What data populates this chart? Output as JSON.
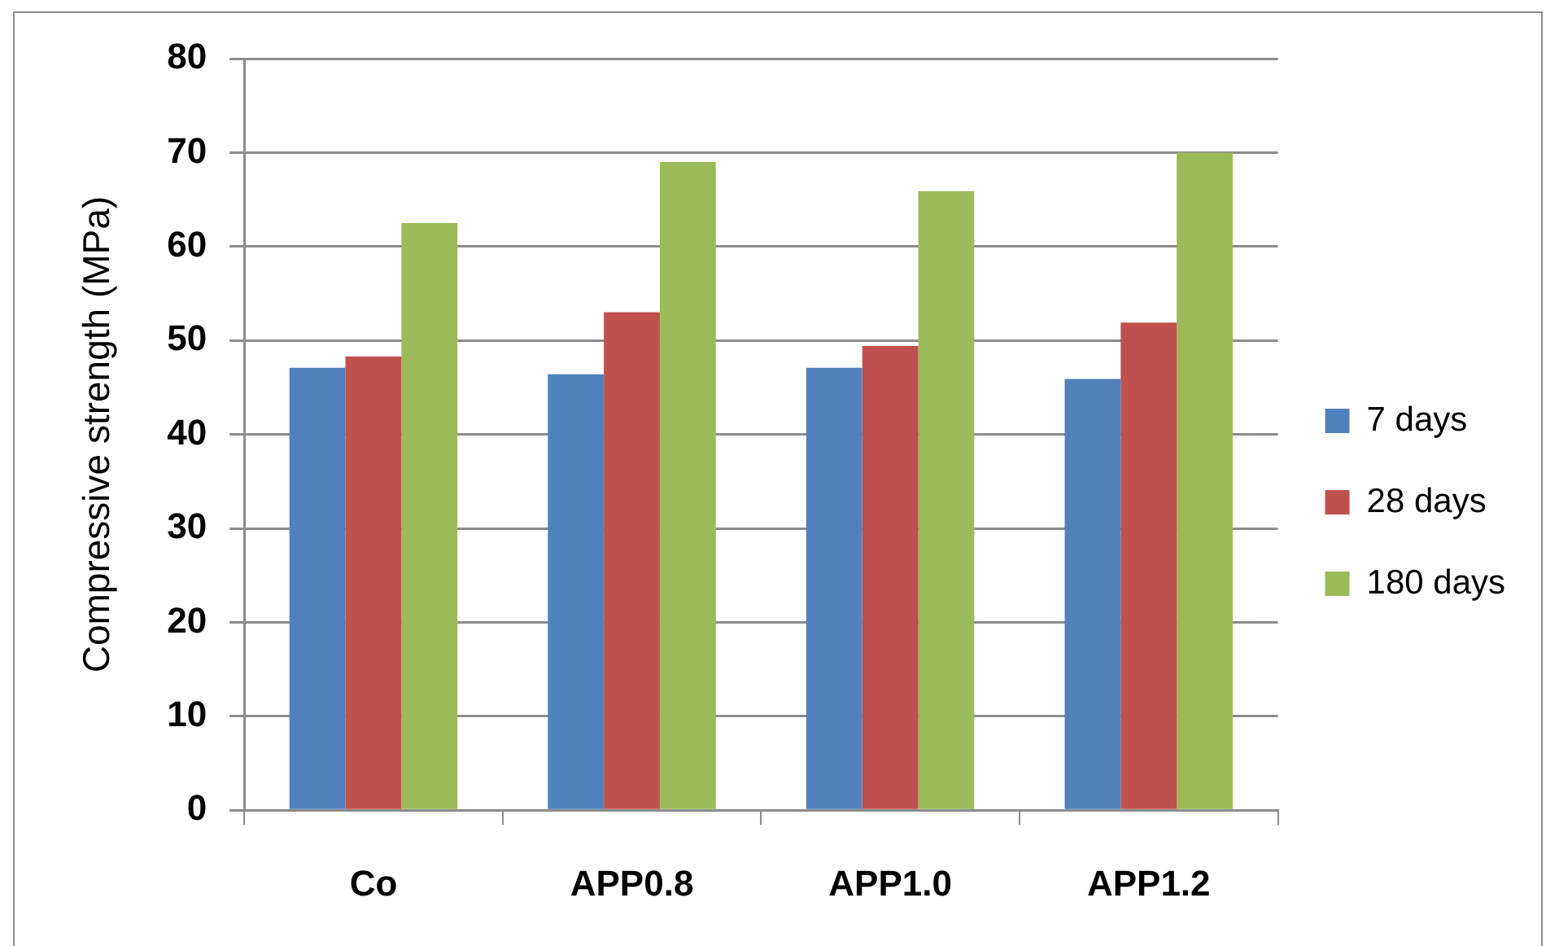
{
  "chart_data": {
    "type": "bar",
    "ylabel": "Compressive strength (MPa)",
    "categories": [
      "Co",
      "APP0.8",
      "APP1.0",
      "APP1.2"
    ],
    "series": [
      {
        "name": "7 days",
        "color": "#4f81bd",
        "values": [
          47.1,
          46.4,
          47.1,
          45.9
        ]
      },
      {
        "name": "28 days",
        "color": "#c0504d",
        "values": [
          48.3,
          53.0,
          49.4,
          51.9
        ]
      },
      {
        "name": "180 days",
        "color": "#9bbb59",
        "values": [
          62.5,
          69.0,
          65.9,
          70.0
        ]
      }
    ],
    "ylim": [
      0,
      80
    ],
    "yticks": [
      0,
      10,
      20,
      30,
      40,
      50,
      60,
      70,
      80
    ],
    "grid": "y",
    "legend": "right"
  }
}
